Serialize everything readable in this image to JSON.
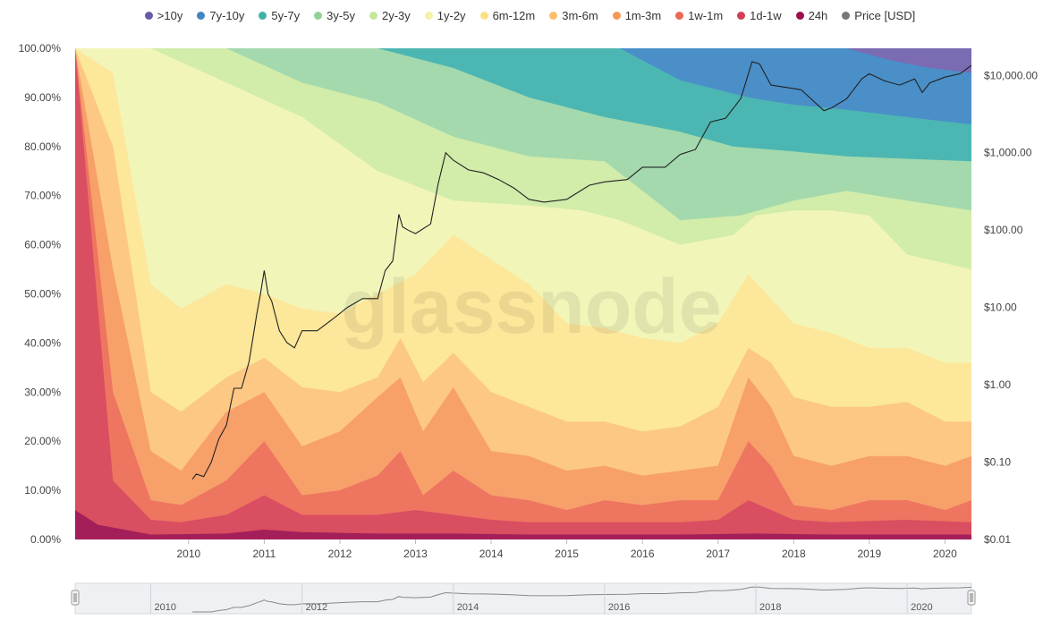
{
  "chart_data": {
    "type": "area",
    "stacking": "percent",
    "x_ticks": [
      "2010",
      "2011",
      "2012",
      "2013",
      "2014",
      "2015",
      "2016",
      "2017",
      "2018",
      "2019",
      "2020"
    ],
    "y_left_ticks": [
      "0.00%",
      "10.00%",
      "20.00%",
      "30.00%",
      "40.00%",
      "50.00%",
      "60.00%",
      "70.00%",
      "80.00%",
      "90.00%",
      "100.00%"
    ],
    "y_right_ticks": [
      "$0.01",
      "$0.10",
      "$1.00",
      "$10.00",
      "$100.00",
      "$1,000.00",
      "$10,000.00"
    ],
    "ylim_left": [
      0,
      100
    ],
    "ylim_right_log10": [
      -2,
      4.35
    ],
    "xlim": [
      2009.0,
      2020.85
    ],
    "watermark": "glassnode",
    "navigator_ticks": [
      "2010",
      "2012",
      "2014",
      "2016",
      "2018",
      "2020"
    ],
    "series": [
      {
        "name": ">10y",
        "color": "#7b6bb3",
        "x": [
          2009.0,
          2019.2,
          2019.5,
          2020.0,
          2020.5,
          2020.85
        ],
        "upper": [
          100,
          100,
          100,
          100,
          100,
          100
        ]
      },
      {
        "name": "7y-10y",
        "color": "#4a8fc8",
        "x": [
          2009.0,
          2016.2,
          2017.0,
          2017.9,
          2019.2,
          2019.8,
          2020.3,
          2020.85
        ],
        "upper": [
          100,
          100,
          100,
          100,
          100,
          97.5,
          96,
          95
        ]
      },
      {
        "name": "5y-7y",
        "color": "#4cb7b2",
        "x": [
          2009.0,
          2014.0,
          2015.0,
          2016.2,
          2017.0,
          2017.9,
          2018.5,
          2019.2,
          2020.0,
          2020.85
        ],
        "upper": [
          100,
          100,
          100,
          100,
          93.5,
          90,
          88.5,
          87.5,
          86,
          84.5
        ]
      },
      {
        "name": "3y-5y",
        "color": "#a3d9ad",
        "x": [
          2009.0,
          2012.0,
          2013.0,
          2014.0,
          2015.0,
          2016.0,
          2017.0,
          2017.7,
          2018.5,
          2019.2,
          2020.0,
          2020.85
        ],
        "upper": [
          100,
          100,
          100,
          96,
          90,
          86,
          83,
          80,
          79,
          78,
          77.5,
          77
        ]
      },
      {
        "name": "2y-3y",
        "color": "#d2ecaa",
        "x": [
          2009.0,
          2011.0,
          2012.0,
          2013.0,
          2014.0,
          2015.0,
          2016.0,
          2017.0,
          2017.8,
          2018.5,
          2019.2,
          2020.0,
          2020.85
        ],
        "upper": [
          100,
          100,
          93,
          89,
          82,
          78,
          77,
          65,
          66,
          69,
          71,
          69,
          67
        ]
      },
      {
        "name": "1y-2y",
        "color": "#f2f5b8",
        "x": [
          2009.0,
          2010.0,
          2011.0,
          2012.0,
          2013.0,
          2014.0,
          2015.0,
          2015.7,
          2016.2,
          2017.0,
          2017.7,
          2018.0,
          2018.5,
          2019.0,
          2019.5,
          2020.0,
          2020.85
        ],
        "upper": [
          100,
          100,
          93,
          86,
          75,
          69,
          68,
          67,
          65,
          60,
          62,
          66,
          67,
          67,
          66,
          58,
          55
        ]
      },
      {
        "name": "6m-12m",
        "color": "#fce79a",
        "x": [
          2009.0,
          2009.5,
          2010.0,
          2010.4,
          2011.0,
          2011.5,
          2012.0,
          2012.5,
          2013.0,
          2013.5,
          2014.0,
          2014.5,
          2015.0,
          2015.5,
          2016.0,
          2016.5,
          2017.0,
          2017.5,
          2017.9,
          2018.2,
          2018.5,
          2019.0,
          2019.5,
          2020.0,
          2020.5,
          2020.85
        ],
        "upper": [
          100,
          95,
          52,
          47,
          52,
          50,
          47,
          46,
          50,
          54,
          62,
          57,
          52,
          44,
          43,
          41,
          40,
          44,
          54,
          49,
          44,
          42,
          39,
          39,
          36,
          36
        ]
      },
      {
        "name": "3m-6m",
        "color": "#fcc884",
        "x": [
          2009.0,
          2009.5,
          2010.0,
          2010.4,
          2011.0,
          2011.5,
          2012.0,
          2012.5,
          2013.0,
          2013.3,
          2013.6,
          2014.0,
          2014.5,
          2015.0,
          2015.5,
          2016.0,
          2016.5,
          2017.0,
          2017.5,
          2017.9,
          2018.2,
          2018.5,
          2019.0,
          2019.5,
          2020.0,
          2020.5,
          2020.85
        ],
        "upper": [
          100,
          80,
          30,
          26,
          33,
          37,
          31,
          30,
          33,
          41,
          32,
          38,
          30,
          27,
          24,
          24,
          22,
          23,
          27,
          39,
          36,
          29,
          27,
          27,
          28,
          24,
          24
        ]
      },
      {
        "name": "1m-3m",
        "color": "#f7a06a",
        "x": [
          2009.0,
          2009.5,
          2010.0,
          2010.4,
          2011.0,
          2011.5,
          2012.0,
          2012.5,
          2013.0,
          2013.3,
          2013.6,
          2014.0,
          2014.5,
          2015.0,
          2015.5,
          2016.0,
          2016.5,
          2017.0,
          2017.5,
          2017.9,
          2018.2,
          2018.5,
          2019.0,
          2019.5,
          2020.0,
          2020.5,
          2020.85
        ],
        "upper": [
          100,
          55,
          18,
          14,
          26,
          30,
          19,
          22,
          29,
          33,
          22,
          31,
          18,
          17,
          14,
          15,
          13,
          14,
          15,
          33,
          27,
          17,
          15,
          17,
          17,
          15,
          17
        ]
      },
      {
        "name": "1w-1m",
        "color": "#ee7560",
        "x": [
          2009.0,
          2009.5,
          2010.0,
          2010.4,
          2011.0,
          2011.5,
          2012.0,
          2012.5,
          2013.0,
          2013.3,
          2013.6,
          2014.0,
          2014.5,
          2015.0,
          2015.5,
          2016.0,
          2016.5,
          2017.0,
          2017.5,
          2017.9,
          2018.2,
          2018.5,
          2019.0,
          2019.5,
          2020.0,
          2020.5,
          2020.85
        ],
        "upper": [
          100,
          30,
          8,
          7,
          12,
          20,
          9,
          10,
          13,
          18,
          9,
          14,
          9,
          8,
          6,
          8,
          7,
          8,
          8,
          20,
          15,
          7,
          6,
          8,
          8,
          6,
          8
        ]
      },
      {
        "name": "1d-1w",
        "color": "#d94e60",
        "x": [
          2009.0,
          2009.5,
          2010.0,
          2010.4,
          2011.0,
          2011.5,
          2012.0,
          2012.5,
          2013.0,
          2013.5,
          2014.0,
          2014.5,
          2015.0,
          2016.0,
          2017.0,
          2017.5,
          2017.9,
          2018.5,
          2019.0,
          2020.0,
          2020.85
        ],
        "upper": [
          100,
          12,
          4,
          3.5,
          5,
          9,
          5,
          5,
          5,
          6,
          5,
          4,
          3.5,
          3.5,
          3.5,
          4,
          8,
          4,
          3.5,
          4,
          3.5
        ]
      },
      {
        "name": "24h",
        "color": "#a31f5a",
        "x": [
          2009.0,
          2009.3,
          2010.0,
          2011.0,
          2011.5,
          2012.0,
          2013.0,
          2014.0,
          2015.0,
          2016.0,
          2017.0,
          2018.0,
          2019.0,
          2020.0,
          2020.85
        ],
        "upper": [
          6,
          3,
          1,
          1.2,
          2,
          1.5,
          1.2,
          1.2,
          1,
          1,
          1,
          1.2,
          1,
          1,
          1
        ]
      }
    ],
    "price": {
      "name": "Price [USD]",
      "color": "#222222",
      "x": [
        2010.55,
        2010.6,
        2010.7,
        2010.8,
        2010.9,
        2011.0,
        2011.1,
        2011.2,
        2011.3,
        2011.4,
        2011.45,
        2011.5,
        2011.55,
        2011.6,
        2011.7,
        2011.8,
        2011.9,
        2012.0,
        2012.2,
        2012.4,
        2012.6,
        2012.8,
        2013.0,
        2013.1,
        2013.2,
        2013.28,
        2013.33,
        2013.4,
        2013.5,
        2013.7,
        2013.8,
        2013.9,
        2014.0,
        2014.2,
        2014.4,
        2014.6,
        2014.8,
        2015.0,
        2015.2,
        2015.5,
        2015.8,
        2016.0,
        2016.3,
        2016.5,
        2016.8,
        2017.0,
        2017.2,
        2017.4,
        2017.6,
        2017.8,
        2017.95,
        2018.05,
        2018.2,
        2018.4,
        2018.6,
        2018.9,
        2019.0,
        2019.2,
        2019.4,
        2019.5,
        2019.7,
        2019.9,
        2020.1,
        2020.2,
        2020.3,
        2020.5,
        2020.7,
        2020.85
      ],
      "y": [
        0.06,
        0.07,
        0.065,
        0.1,
        0.2,
        0.3,
        0.9,
        0.9,
        2,
        8,
        15,
        30,
        15,
        12,
        5,
        3.5,
        3,
        5,
        5,
        7,
        10,
        13,
        13,
        30,
        40,
        160,
        110,
        100,
        90,
        120,
        400,
        1000,
        800,
        600,
        550,
        450,
        350,
        250,
        230,
        250,
        380,
        420,
        450,
        650,
        650,
        950,
        1100,
        2500,
        2800,
        5000,
        15000,
        14000,
        7500,
        7000,
        6500,
        3500,
        3800,
        5000,
        9000,
        10500,
        8500,
        7500,
        9000,
        6000,
        8000,
        9500,
        10500,
        13500
      ]
    }
  },
  "legend": [
    {
      "label": ">10y",
      "color": "#6a59a7"
    },
    {
      "label": "7y-10y",
      "color": "#3f86c2"
    },
    {
      "label": "5y-7y",
      "color": "#42b0a8"
    },
    {
      "label": "3y-5y",
      "color": "#92d19c"
    },
    {
      "label": "2y-3y",
      "color": "#c6e79a"
    },
    {
      "label": "1y-2y",
      "color": "#f1f3a8"
    },
    {
      "label": "6m-12m",
      "color": "#fbe184"
    },
    {
      "label": "3m-6m",
      "color": "#fbbf6e"
    },
    {
      "label": "1m-3m",
      "color": "#f59755"
    },
    {
      "label": "1w-1m",
      "color": "#ea6950"
    },
    {
      "label": "1d-1w",
      "color": "#d33d58"
    },
    {
      "label": "24h",
      "color": "#9c0f4d"
    },
    {
      "label": "Price [USD]",
      "color": "#777777"
    }
  ]
}
